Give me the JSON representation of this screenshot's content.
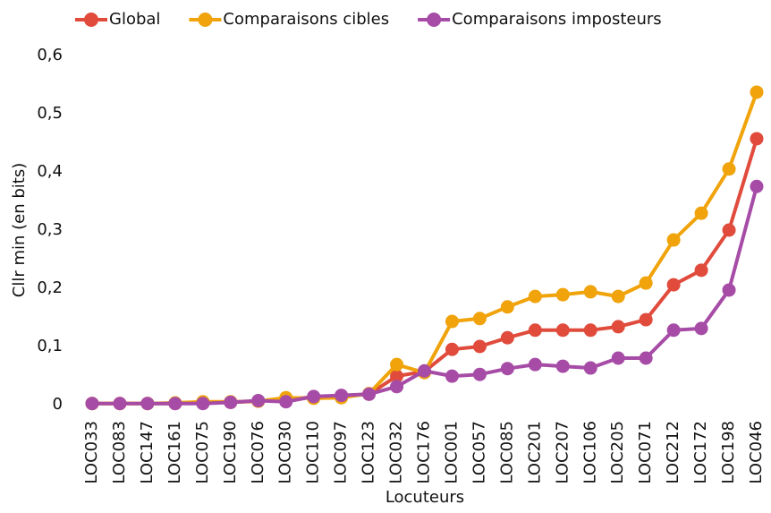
{
  "chart_data": {
    "type": "line",
    "y_label": "Cllr min (en bits)",
    "x_label": "Locuteurs",
    "categories": [
      "LOC033",
      "LOC083",
      "LOC147",
      "LOC161",
      "LOC075",
      "LOC190",
      "LOC076",
      "LOC030",
      "LOC110",
      "LOC097",
      "LOC123",
      "LOC032",
      "LOC176",
      "LOC001",
      "LOC057",
      "LOC085",
      "LOC201",
      "LOC207",
      "LOC106",
      "LOC205",
      "LOC071",
      "LOC212",
      "LOC172",
      "LOC198",
      "LOC046"
    ],
    "series": [
      {
        "name": "Global",
        "color": "#e04b3c",
        "values": [
          0.002,
          0.002,
          0.002,
          0.002,
          0.003,
          0.004,
          0.006,
          0.009,
          0.013,
          0.015,
          0.018,
          0.049,
          0.057,
          0.095,
          0.1,
          0.115,
          0.128,
          0.128,
          0.128,
          0.134,
          0.146,
          0.206,
          0.231,
          0.3,
          0.457
        ]
      },
      {
        "name": "Comparaisons cibles",
        "color": "#f0a30a",
        "values": [
          0.002,
          0.002,
          0.002,
          0.003,
          0.005,
          0.005,
          0.006,
          0.012,
          0.011,
          0.012,
          0.019,
          0.069,
          0.055,
          0.143,
          0.148,
          0.168,
          0.186,
          0.189,
          0.194,
          0.186,
          0.209,
          0.283,
          0.329,
          0.405,
          0.537
        ]
      },
      {
        "name": "Comparaisons imposteurs",
        "color": "#a64ca6",
        "values": [
          0.002,
          0.002,
          0.002,
          0.002,
          0.002,
          0.004,
          0.007,
          0.005,
          0.014,
          0.016,
          0.018,
          0.031,
          0.058,
          0.049,
          0.052,
          0.062,
          0.069,
          0.066,
          0.063,
          0.08,
          0.08,
          0.128,
          0.131,
          0.197,
          0.375
        ]
      }
    ],
    "ylim": [
      0,
      0.6
    ],
    "yticks": [
      0,
      {
        "value": 0.1,
        "label": "0,1"
      },
      {
        "value": 0.2,
        "label": "0,2"
      },
      {
        "value": 0.3,
        "label": "0,3"
      },
      {
        "value": 0.4,
        "label": "0,4"
      },
      {
        "value": 0.5,
        "label": "0,5"
      },
      {
        "value": 0.6,
        "label": "0,6"
      }
    ],
    "legend": "top"
  }
}
